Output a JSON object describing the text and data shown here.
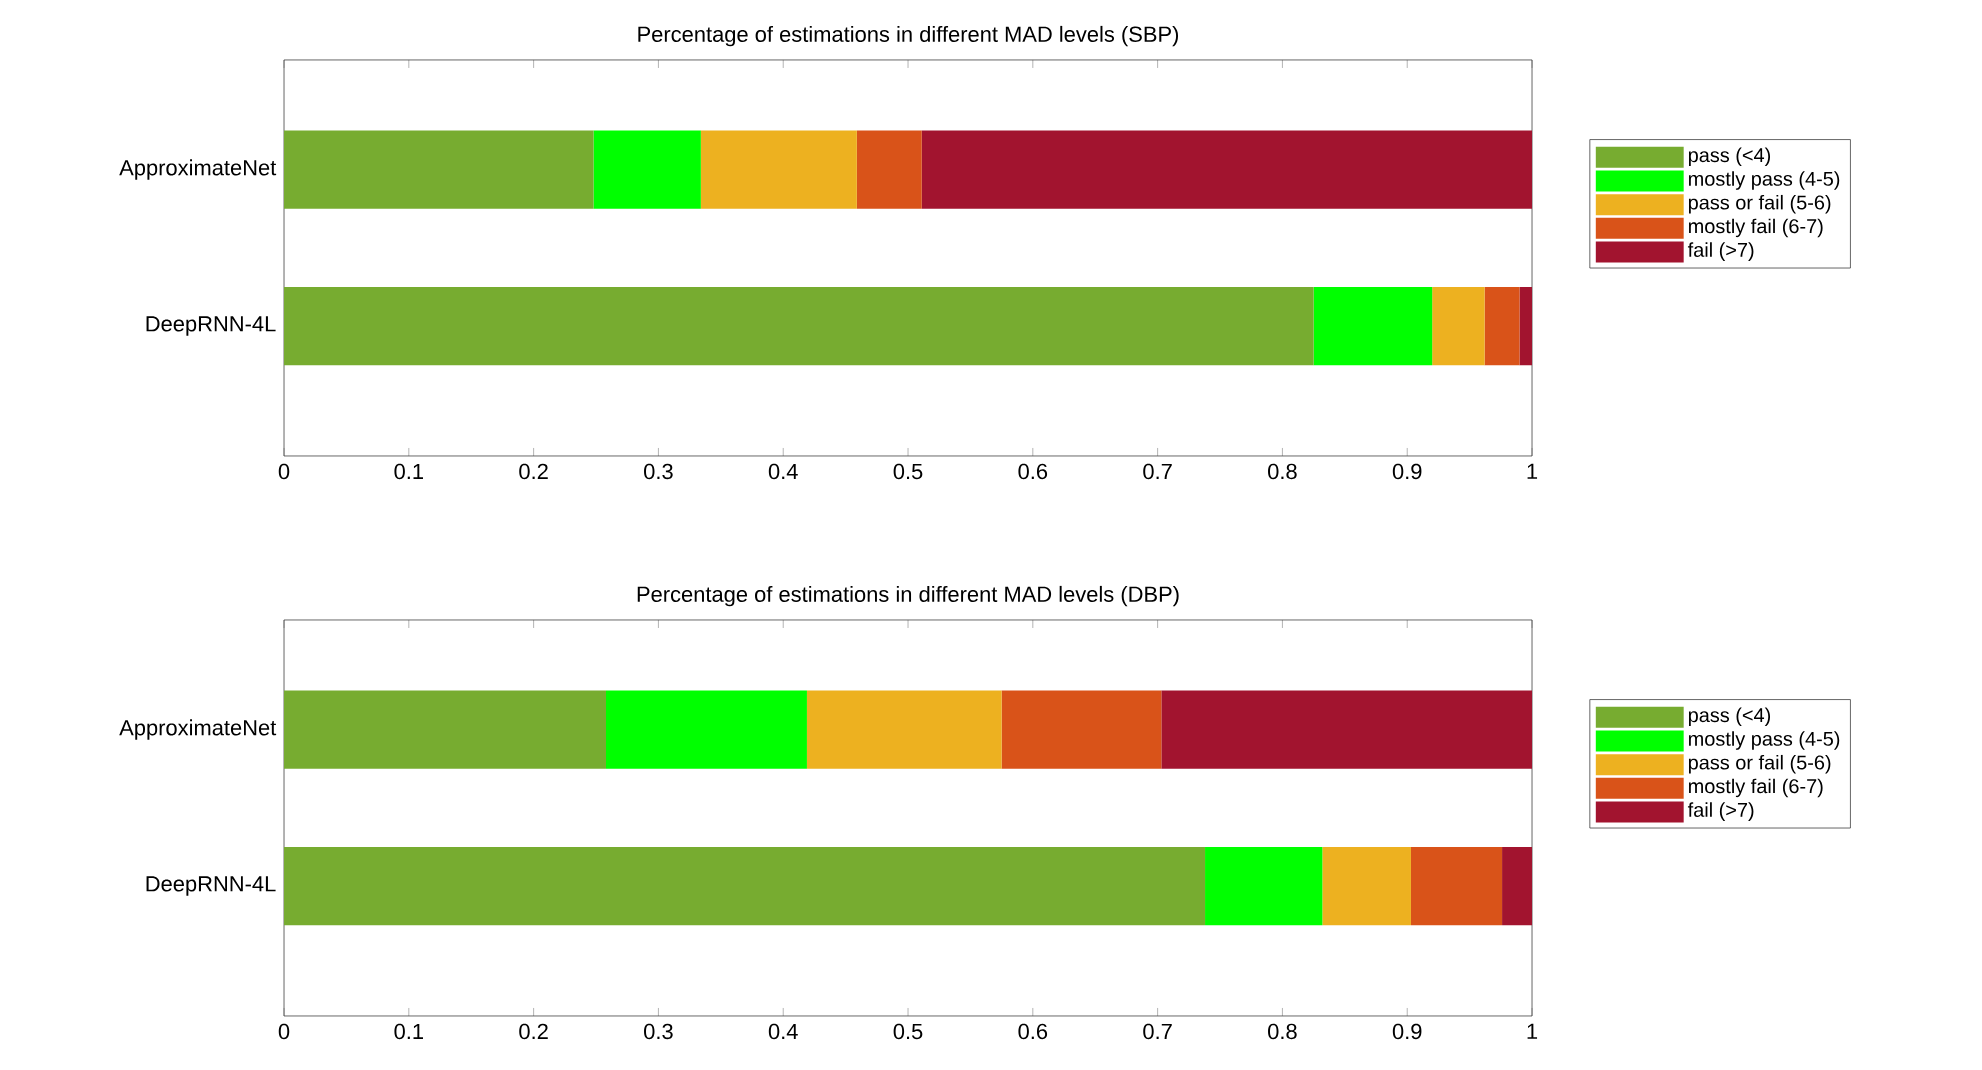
{
  "chart_data": [
    {
      "type": "bar",
      "orientation": "horizontal",
      "stacked": true,
      "title": "Percentage of estimations in different MAD levels (SBP)",
      "categories": [
        "ApproximateNet",
        "DeepRNN-4L"
      ],
      "series": [
        {
          "name": "pass (<4)",
          "color": "#77ac30",
          "values": [
            0.248,
            0.825
          ]
        },
        {
          "name": "mostly pass (4-5)",
          "color": "#00ff00",
          "values": [
            0.086,
            0.095
          ]
        },
        {
          "name": "pass or fail (5-6)",
          "color": "#edb120",
          "values": [
            0.125,
            0.042
          ]
        },
        {
          "name": "mostly fail (6-7)",
          "color": "#d95319",
          "values": [
            0.052,
            0.028
          ]
        },
        {
          "name": "fail (>7)",
          "color": "#a2142f",
          "values": [
            0.489,
            0.01
          ]
        }
      ],
      "xlim": [
        0,
        1
      ],
      "xticks": [
        0,
        0.1,
        0.2,
        0.3,
        0.4,
        0.5,
        0.6,
        0.7,
        0.8,
        0.9,
        1
      ],
      "legend": "right",
      "grid": false
    },
    {
      "type": "bar",
      "orientation": "horizontal",
      "stacked": true,
      "title": "Percentage of estimations in different MAD levels (DBP)",
      "categories": [
        "ApproximateNet",
        "DeepRNN-4L"
      ],
      "series": [
        {
          "name": "pass (<4)",
          "color": "#77ac30",
          "values": [
            0.258,
            0.738
          ]
        },
        {
          "name": "mostly pass (4-5)",
          "color": "#00ff00",
          "values": [
            0.161,
            0.094
          ]
        },
        {
          "name": "pass or fail (5-6)",
          "color": "#edb120",
          "values": [
            0.156,
            0.071
          ]
        },
        {
          "name": "mostly fail (6-7)",
          "color": "#d95319",
          "values": [
            0.128,
            0.073
          ]
        },
        {
          "name": "fail (>7)",
          "color": "#a2142f",
          "values": [
            0.297,
            0.024
          ]
        }
      ],
      "xlim": [
        0,
        1
      ],
      "xticks": [
        0,
        0.1,
        0.2,
        0.3,
        0.4,
        0.5,
        0.6,
        0.7,
        0.8,
        0.9,
        1
      ],
      "legend": "right",
      "grid": false
    }
  ]
}
